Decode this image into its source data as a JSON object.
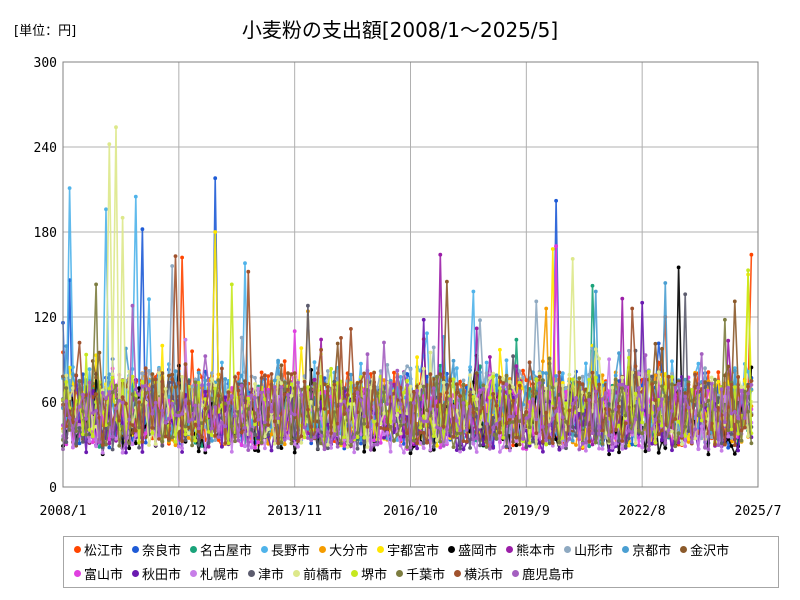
{
  "unit_label": "[単位：円]",
  "title": "小麦粉の支出額[2008/1～2025/5]",
  "chart_data": {
    "type": "line",
    "title": "小麦粉の支出額[2008/1～2025/5]",
    "unit": "[単位：円]",
    "x_range": [
      "2008/1",
      "2025/7"
    ],
    "ylim": [
      0,
      300
    ],
    "y_ticks": [
      "0",
      "60",
      "120",
      "180",
      "240",
      "300"
    ],
    "x_ticks": [
      "2008/1",
      "2010/12",
      "2013/11",
      "2016/10",
      "2019/9",
      "2022/8",
      "2025/7"
    ],
    "grid": true,
    "legend_position": "bottom",
    "series": [
      {
        "name": "松江市",
        "color": "#ff4500",
        "base": 55,
        "spread": 28,
        "seed": 1,
        "peaks": [
          [
            "2011/1",
            162
          ],
          [
            "2023/3",
            120
          ],
          [
            "2025/5",
            164
          ]
        ]
      },
      {
        "name": "奈良市",
        "color": "#1e5bd6",
        "base": 55,
        "spread": 28,
        "seed": 2,
        "peaks": [
          [
            "2010/1",
            182
          ],
          [
            "2011/11",
            218
          ],
          [
            "2020/6",
            202
          ],
          [
            "2008/3",
            146
          ]
        ]
      },
      {
        "name": "名古屋市",
        "color": "#1aa37a",
        "base": 52,
        "spread": 24,
        "seed": 3,
        "peaks": [
          [
            "2021/5",
            142
          ],
          [
            "2019/6",
            104
          ]
        ]
      },
      {
        "name": "長野市",
        "color": "#4fb3ea",
        "base": 60,
        "spread": 30,
        "seed": 4,
        "peaks": [
          [
            "2008/3",
            211
          ],
          [
            "2009/11",
            205
          ],
          [
            "2009/2",
            196
          ],
          [
            "2012/8",
            158
          ],
          [
            "2018/5",
            138
          ]
        ]
      },
      {
        "name": "大分市",
        "color": "#f59c00",
        "base": 55,
        "spread": 26,
        "seed": 5,
        "peaks": [
          [
            "2020/3",
            126
          ],
          [
            "2014/3",
            124
          ]
        ]
      },
      {
        "name": "宇都宮市",
        "color": "#ffe600",
        "base": 52,
        "spread": 24,
        "seed": 6,
        "peaks": [
          [
            "2011/11",
            180
          ],
          [
            "2020/5",
            168
          ],
          [
            "2025/4",
            150
          ]
        ]
      },
      {
        "name": "盛岡市",
        "color": "#000000",
        "base": 45,
        "spread": 22,
        "seed": 7,
        "peaks": [
          [
            "2023/7",
            155
          ],
          [
            "2025/6",
            93
          ]
        ]
      },
      {
        "name": "熊本市",
        "color": "#9b1ea8",
        "base": 52,
        "spread": 24,
        "seed": 8,
        "peaks": [
          [
            "2017/7",
            164
          ],
          [
            "2020/6",
            170
          ],
          [
            "2022/2",
            133
          ]
        ]
      },
      {
        "name": "山形市",
        "color": "#8ea9c1",
        "base": 58,
        "spread": 26,
        "seed": 9,
        "peaks": [
          [
            "2010/10",
            156
          ],
          [
            "2019/12",
            131
          ]
        ]
      },
      {
        "name": "京都市",
        "color": "#4a9fd2",
        "base": 56,
        "spread": 26,
        "seed": 10,
        "peaks": [
          [
            "2023/3",
            144
          ],
          [
            "2021/6",
            138
          ]
        ]
      },
      {
        "name": "金沢市",
        "color": "#8b5a2b",
        "base": 55,
        "spread": 26,
        "seed": 11,
        "peaks": [
          [
            "2017/9",
            145
          ],
          [
            "2024/12",
            131
          ]
        ]
      },
      {
        "name": "富山市",
        "color": "#e040e0",
        "base": 48,
        "spread": 22,
        "seed": 12,
        "peaks": [
          [
            "2020/6",
            170
          ],
          [
            "2013/11",
            110
          ]
        ]
      },
      {
        "name": "秋田市",
        "color": "#6a1ab0",
        "base": 46,
        "spread": 22,
        "seed": 13,
        "peaks": [
          [
            "2022/8",
            130
          ],
          [
            "2017/2",
            118
          ]
        ]
      },
      {
        "name": "札幌市",
        "color": "#c77ee8",
        "base": 44,
        "spread": 20,
        "seed": 14,
        "peaks": [
          [
            "2011/2",
            104
          ]
        ]
      },
      {
        "name": "津市",
        "color": "#5c5c6e",
        "base": 50,
        "spread": 24,
        "seed": 15,
        "peaks": [
          [
            "2014/3",
            128
          ],
          [
            "2023/9",
            136
          ]
        ]
      },
      {
        "name": "前橋市",
        "color": "#dde88a",
        "base": 56,
        "spread": 28,
        "seed": 16,
        "peaks": [
          [
            "2009/5",
            254
          ],
          [
            "2009/3",
            242
          ],
          [
            "2020/11",
            161
          ],
          [
            "2009/7",
            190
          ]
        ]
      },
      {
        "name": "堺市",
        "color": "#c6e81f",
        "base": 54,
        "spread": 24,
        "seed": 17,
        "peaks": [
          [
            "2012/4",
            143
          ],
          [
            "2025/4",
            153
          ]
        ]
      },
      {
        "name": "千葉市",
        "color": "#7d7d40",
        "base": 52,
        "spread": 24,
        "seed": 18,
        "peaks": [
          [
            "2008/11",
            143
          ],
          [
            "2024/9",
            118
          ]
        ]
      },
      {
        "name": "横浜市",
        "color": "#a0522d",
        "base": 55,
        "spread": 26,
        "seed": 19,
        "peaks": [
          [
            "2010/11",
            163
          ],
          [
            "2012/9",
            152
          ],
          [
            "2022/5",
            126
          ]
        ]
      },
      {
        "name": "鹿児島市",
        "color": "#a45fc0",
        "base": 50,
        "spread": 24,
        "seed": 20,
        "peaks": [
          [
            "2009/10",
            128
          ],
          [
            "2016/2",
            102
          ]
        ]
      }
    ]
  }
}
